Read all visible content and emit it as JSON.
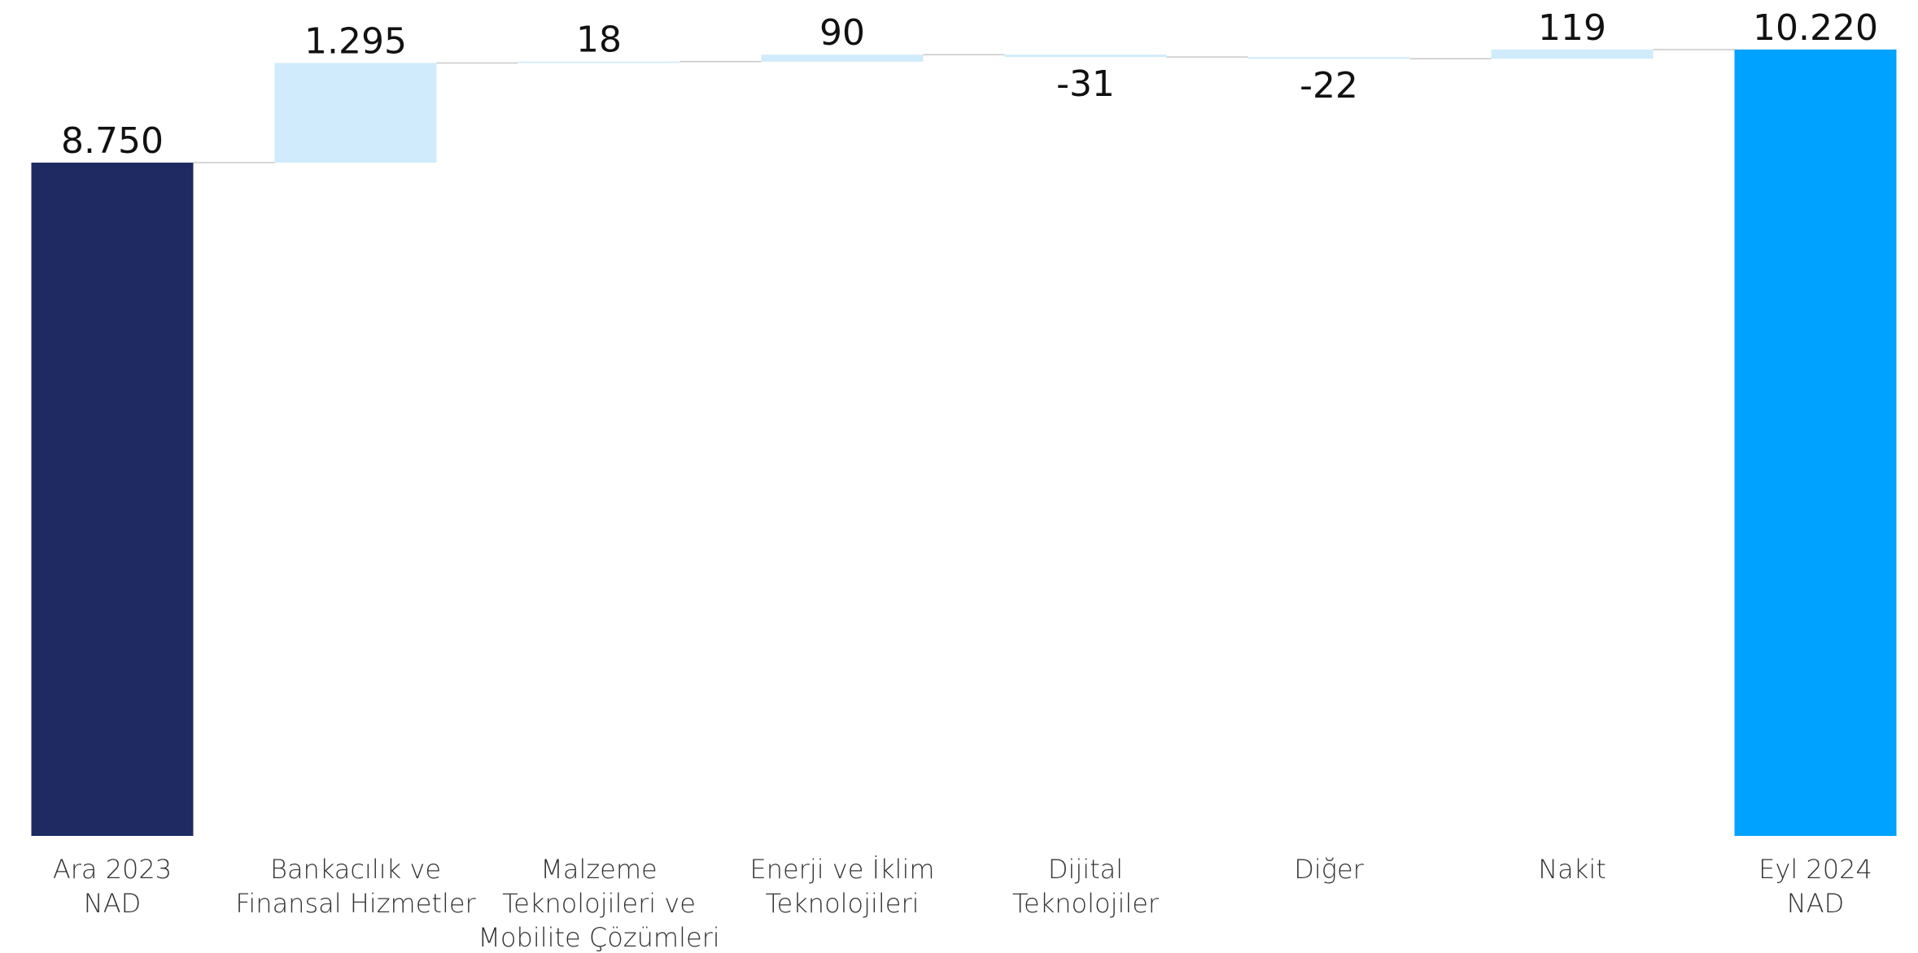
{
  "chart_data": {
    "type": "waterfall",
    "categories": [
      "Ara 2023\nNAD",
      "Bankacılık ve\nFinansal Hizmetler",
      "Malzeme\nTeknolojileri ve\nMobilite Çözümleri",
      "Enerji ve İklim\nTeknolojileri",
      "Dijital\nTeknolojiler",
      "Diğer",
      "Nakit",
      "Eyl 2024\nNAD"
    ],
    "values": [
      8750,
      1295,
      18,
      90,
      -31,
      -22,
      119,
      10220
    ],
    "value_labels": [
      "8.750",
      "1.295",
      "18",
      "90",
      "-31",
      "-22",
      "119",
      "10.220"
    ],
    "is_total": [
      true,
      false,
      false,
      false,
      false,
      false,
      false,
      true
    ],
    "colors": {
      "start": "#1f2a63",
      "change": "#d0ebfb",
      "end": "#00a2ff",
      "connector": "#c8c8c8"
    },
    "ylim": [
      0,
      10800
    ]
  }
}
